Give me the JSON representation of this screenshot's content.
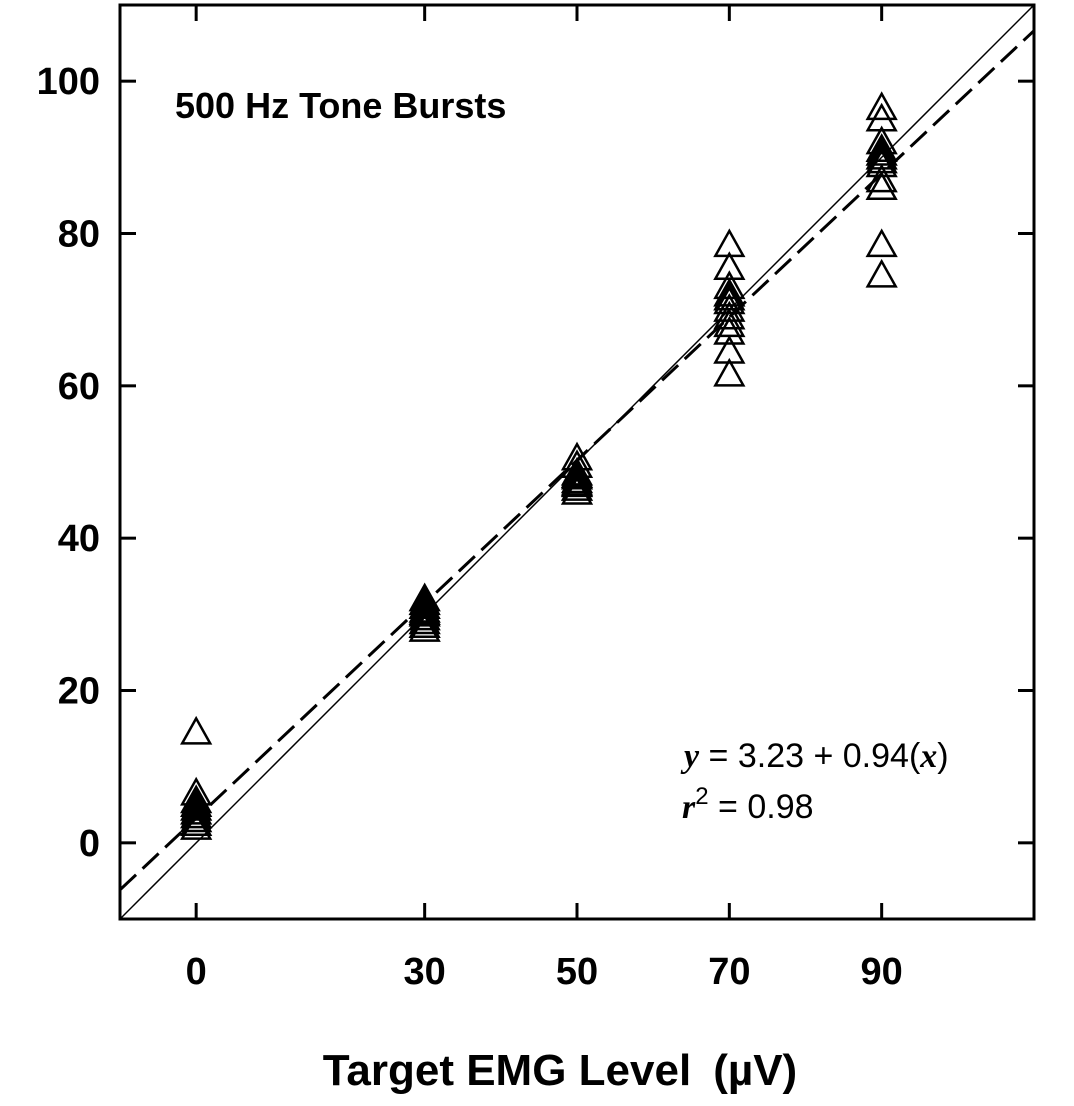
{
  "chart_data": {
    "type": "scatter",
    "title": "500 Hz Tone Bursts",
    "xlabel_main": "Target EMG Level",
    "xlabel_unit": "(µV)",
    "ylabel": "",
    "xlim": [
      -10,
      110
    ],
    "ylim": [
      -10,
      110
    ],
    "x_ticks": [
      0,
      30,
      50,
      70,
      90
    ],
    "y_ticks": [
      0,
      20,
      40,
      60,
      80,
      100
    ],
    "grid": false,
    "marker": "open-triangle",
    "points": [
      {
        "x": 0,
        "y": 14.5
      },
      {
        "x": 0,
        "y": 6.5
      },
      {
        "x": 0,
        "y": 5.5
      },
      {
        "x": 0,
        "y": 5.0
      },
      {
        "x": 0,
        "y": 4.5
      },
      {
        "x": 0,
        "y": 4.0
      },
      {
        "x": 0,
        "y": 3.5
      },
      {
        "x": 0,
        "y": 3.0
      },
      {
        "x": 0,
        "y": 2.5
      },
      {
        "x": 0,
        "y": 2.0
      },
      {
        "x": 30,
        "y": 32.0
      },
      {
        "x": 30,
        "y": 31.5
      },
      {
        "x": 30,
        "y": 31.0
      },
      {
        "x": 30,
        "y": 30.5
      },
      {
        "x": 30,
        "y": 30.0
      },
      {
        "x": 30,
        "y": 29.5
      },
      {
        "x": 30,
        "y": 29.0
      },
      {
        "x": 30,
        "y": 28.5
      },
      {
        "x": 30,
        "y": 28.0
      },
      {
        "x": 30,
        "y": 30.2
      },
      {
        "x": 50,
        "y": 50.5
      },
      {
        "x": 50,
        "y": 49.5
      },
      {
        "x": 50,
        "y": 48.5
      },
      {
        "x": 50,
        "y": 48.0
      },
      {
        "x": 50,
        "y": 47.5
      },
      {
        "x": 50,
        "y": 47.0
      },
      {
        "x": 50,
        "y": 46.5
      },
      {
        "x": 50,
        "y": 46.0
      },
      {
        "x": 50,
        "y": 48.2
      },
      {
        "x": 50,
        "y": 47.2
      },
      {
        "x": 70,
        "y": 78.5
      },
      {
        "x": 70,
        "y": 75.5
      },
      {
        "x": 70,
        "y": 73.0
      },
      {
        "x": 70,
        "y": 72.0
      },
      {
        "x": 70,
        "y": 71.0
      },
      {
        "x": 70,
        "y": 70.0
      },
      {
        "x": 70,
        "y": 69.0
      },
      {
        "x": 70,
        "y": 68.0
      },
      {
        "x": 70,
        "y": 67.0
      },
      {
        "x": 70,
        "y": 64.5
      },
      {
        "x": 70,
        "y": 61.5
      },
      {
        "x": 70,
        "y": 71.5
      },
      {
        "x": 90,
        "y": 96.5
      },
      {
        "x": 90,
        "y": 95.0
      },
      {
        "x": 90,
        "y": 92.0
      },
      {
        "x": 90,
        "y": 91.0
      },
      {
        "x": 90,
        "y": 90.5
      },
      {
        "x": 90,
        "y": 90.0
      },
      {
        "x": 90,
        "y": 89.5
      },
      {
        "x": 90,
        "y": 89.0
      },
      {
        "x": 90,
        "y": 87.0
      },
      {
        "x": 90,
        "y": 86.0
      },
      {
        "x": 90,
        "y": 78.5
      },
      {
        "x": 90,
        "y": 74.5
      }
    ],
    "lines": [
      {
        "style": "solid-thin",
        "intercept": 0,
        "slope": 1
      },
      {
        "style": "dashed",
        "intercept": 3.23,
        "slope": 0.94
      }
    ],
    "annotation": {
      "eq_var_y": "y",
      "eq_rest": " = 3.23 + 0.94(",
      "eq_var_x": "x",
      "eq_close": ")",
      "r2_var": "r",
      "r2_exp": "2",
      "r2_rest": " = 0.98"
    }
  }
}
